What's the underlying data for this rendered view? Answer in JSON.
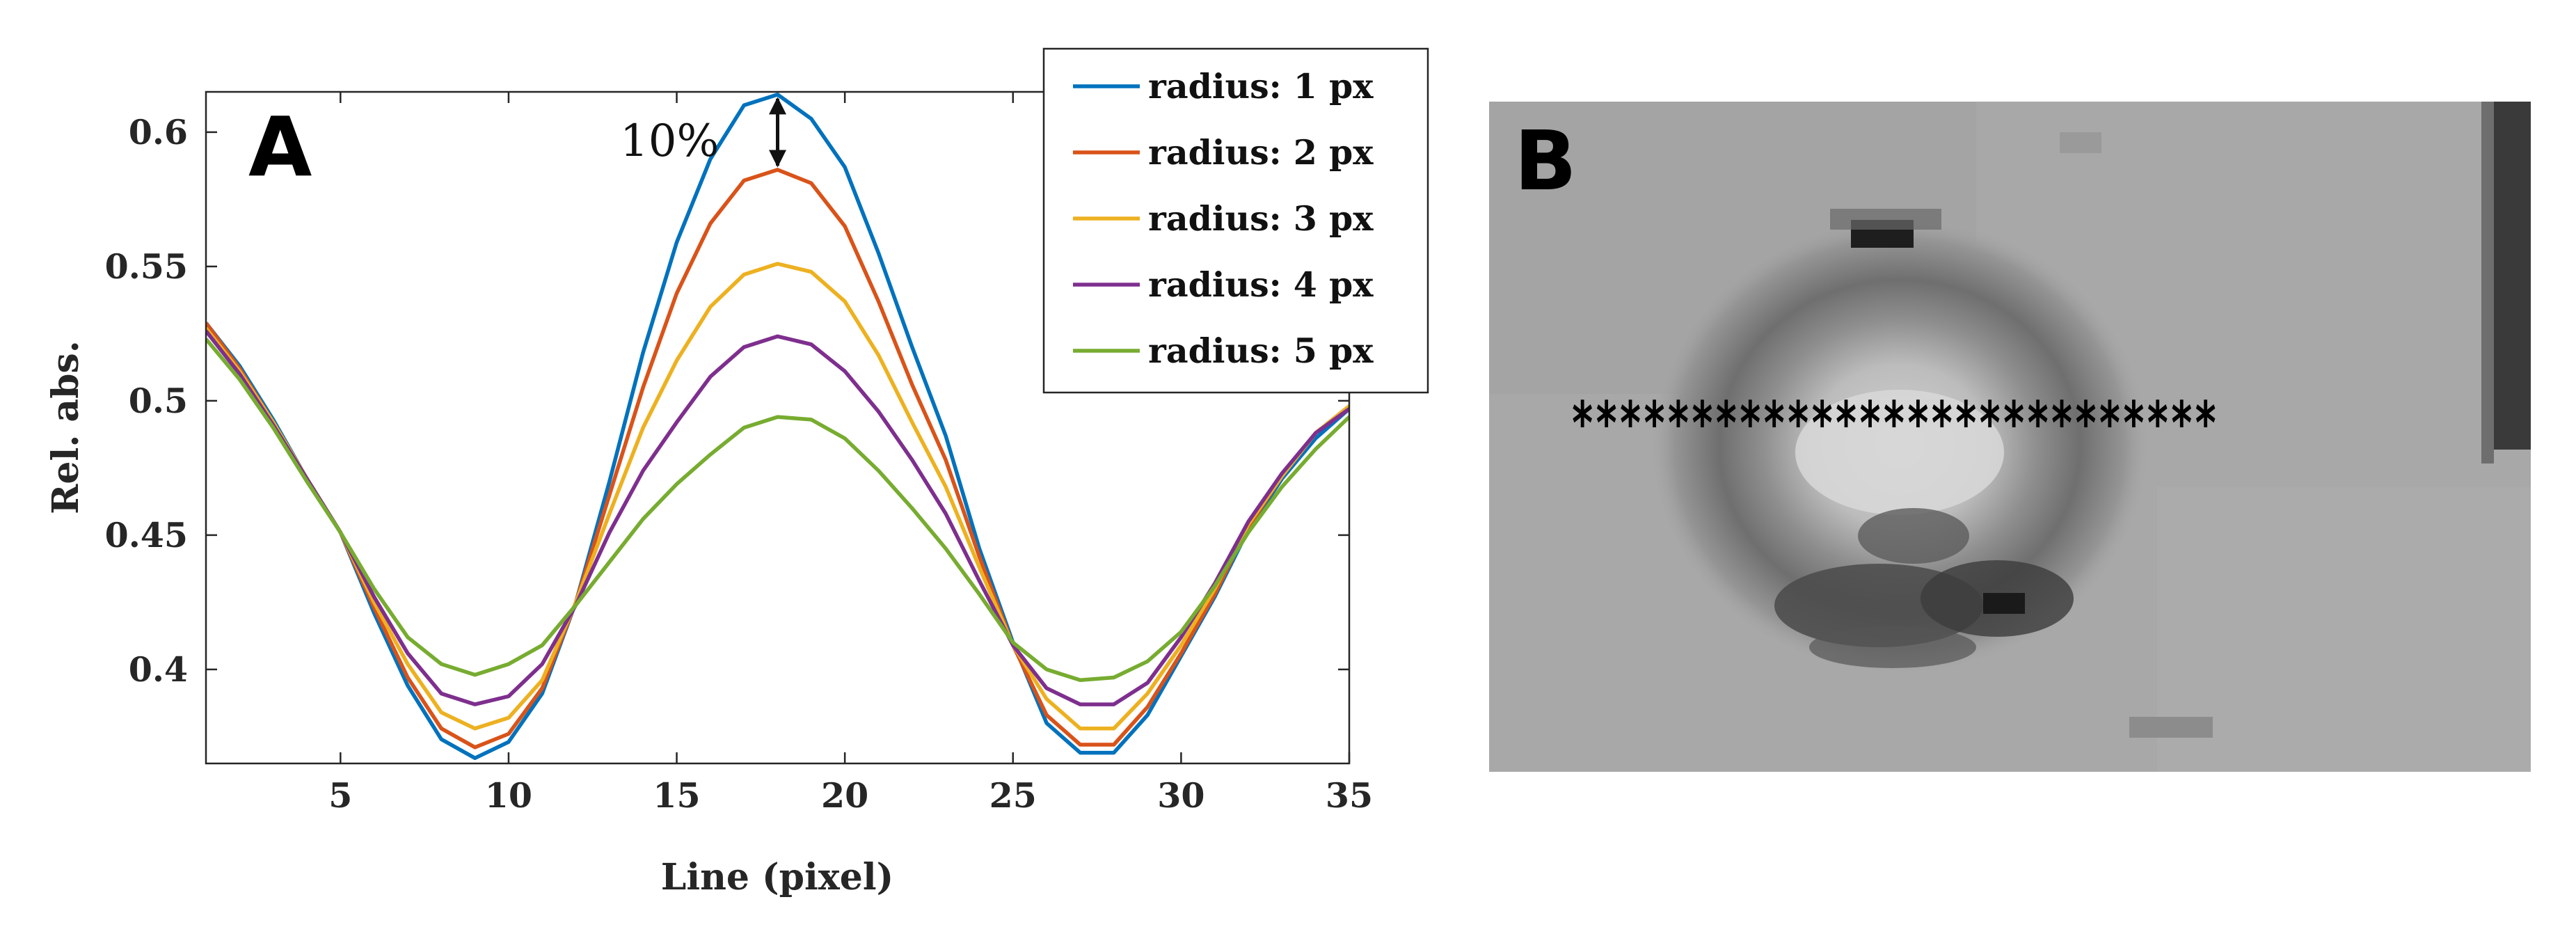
{
  "panel_a_label": "A",
  "panel_b_label": "B",
  "panel_b_markers": "***************************",
  "colors": {
    "series": [
      "#0072BD",
      "#D95319",
      "#EDB120",
      "#7E2F8E",
      "#77AC30"
    ],
    "axis": "#262626"
  },
  "chart_data": {
    "type": "line",
    "title": "",
    "xlabel": "Line (pixel)",
    "ylabel": "Rel. abs.",
    "xlim": [
      1,
      35
    ],
    "ylim": [
      0.365,
      0.615
    ],
    "xticks": [
      5,
      10,
      15,
      20,
      25,
      30,
      35
    ],
    "yticks": [
      0.4,
      0.45,
      0.5,
      0.55,
      0.6
    ],
    "ytick_labels": [
      "0.4",
      "0.45",
      "0.5",
      "0.55",
      "0.6"
    ],
    "legend_position": "top-right",
    "x": [
      1,
      2,
      3,
      4,
      5,
      6,
      7,
      8,
      9,
      10,
      11,
      12,
      13,
      14,
      15,
      16,
      17,
      18,
      19,
      20,
      21,
      22,
      23,
      24,
      25,
      26,
      27,
      28,
      29,
      30,
      31,
      32,
      33,
      34,
      35
    ],
    "series": [
      {
        "name": "radius: 1 px",
        "values": [
          0.529,
          0.513,
          0.493,
          0.471,
          0.451,
          0.421,
          0.394,
          0.374,
          0.367,
          0.373,
          0.391,
          0.425,
          0.47,
          0.518,
          0.559,
          0.59,
          0.61,
          0.614,
          0.605,
          0.587,
          0.555,
          0.52,
          0.487,
          0.445,
          0.41,
          0.38,
          0.369,
          0.369,
          0.383,
          0.405,
          0.427,
          0.452,
          0.471,
          0.486,
          0.497
        ]
      },
      {
        "name": "radius: 2 px",
        "values": [
          0.529,
          0.512,
          0.492,
          0.471,
          0.451,
          0.423,
          0.397,
          0.378,
          0.371,
          0.376,
          0.393,
          0.425,
          0.465,
          0.505,
          0.54,
          0.566,
          0.582,
          0.586,
          0.581,
          0.565,
          0.537,
          0.506,
          0.478,
          0.442,
          0.409,
          0.383,
          0.372,
          0.372,
          0.386,
          0.406,
          0.428,
          0.453,
          0.472,
          0.488,
          0.498
        ]
      },
      {
        "name": "radius: 3 px",
        "values": [
          0.527,
          0.511,
          0.492,
          0.471,
          0.451,
          0.425,
          0.402,
          0.384,
          0.378,
          0.382,
          0.396,
          0.425,
          0.458,
          0.49,
          0.515,
          0.535,
          0.547,
          0.551,
          0.548,
          0.537,
          0.517,
          0.492,
          0.468,
          0.438,
          0.409,
          0.389,
          0.378,
          0.378,
          0.391,
          0.409,
          0.43,
          0.454,
          0.472,
          0.488,
          0.498
        ]
      },
      {
        "name": "radius: 4 px",
        "values": [
          0.526,
          0.51,
          0.491,
          0.471,
          0.451,
          0.427,
          0.406,
          0.391,
          0.387,
          0.39,
          0.402,
          0.424,
          0.451,
          0.474,
          0.492,
          0.509,
          0.52,
          0.524,
          0.521,
          0.511,
          0.496,
          0.478,
          0.458,
          0.433,
          0.409,
          0.393,
          0.387,
          0.387,
          0.395,
          0.412,
          0.432,
          0.455,
          0.473,
          0.488,
          0.497
        ]
      },
      {
        "name": "radius: 5 px",
        "values": [
          0.523,
          0.508,
          0.49,
          0.47,
          0.451,
          0.43,
          0.412,
          0.402,
          0.398,
          0.402,
          0.409,
          0.424,
          0.44,
          0.456,
          0.469,
          0.48,
          0.49,
          0.494,
          0.493,
          0.486,
          0.474,
          0.46,
          0.445,
          0.428,
          0.41,
          0.4,
          0.396,
          0.397,
          0.403,
          0.414,
          0.431,
          0.451,
          0.468,
          0.482,
          0.494
        ]
      }
    ],
    "annotations": [
      {
        "text": "10%",
        "x": 18,
        "y_from": 0.586,
        "y_to": 0.614
      }
    ]
  }
}
